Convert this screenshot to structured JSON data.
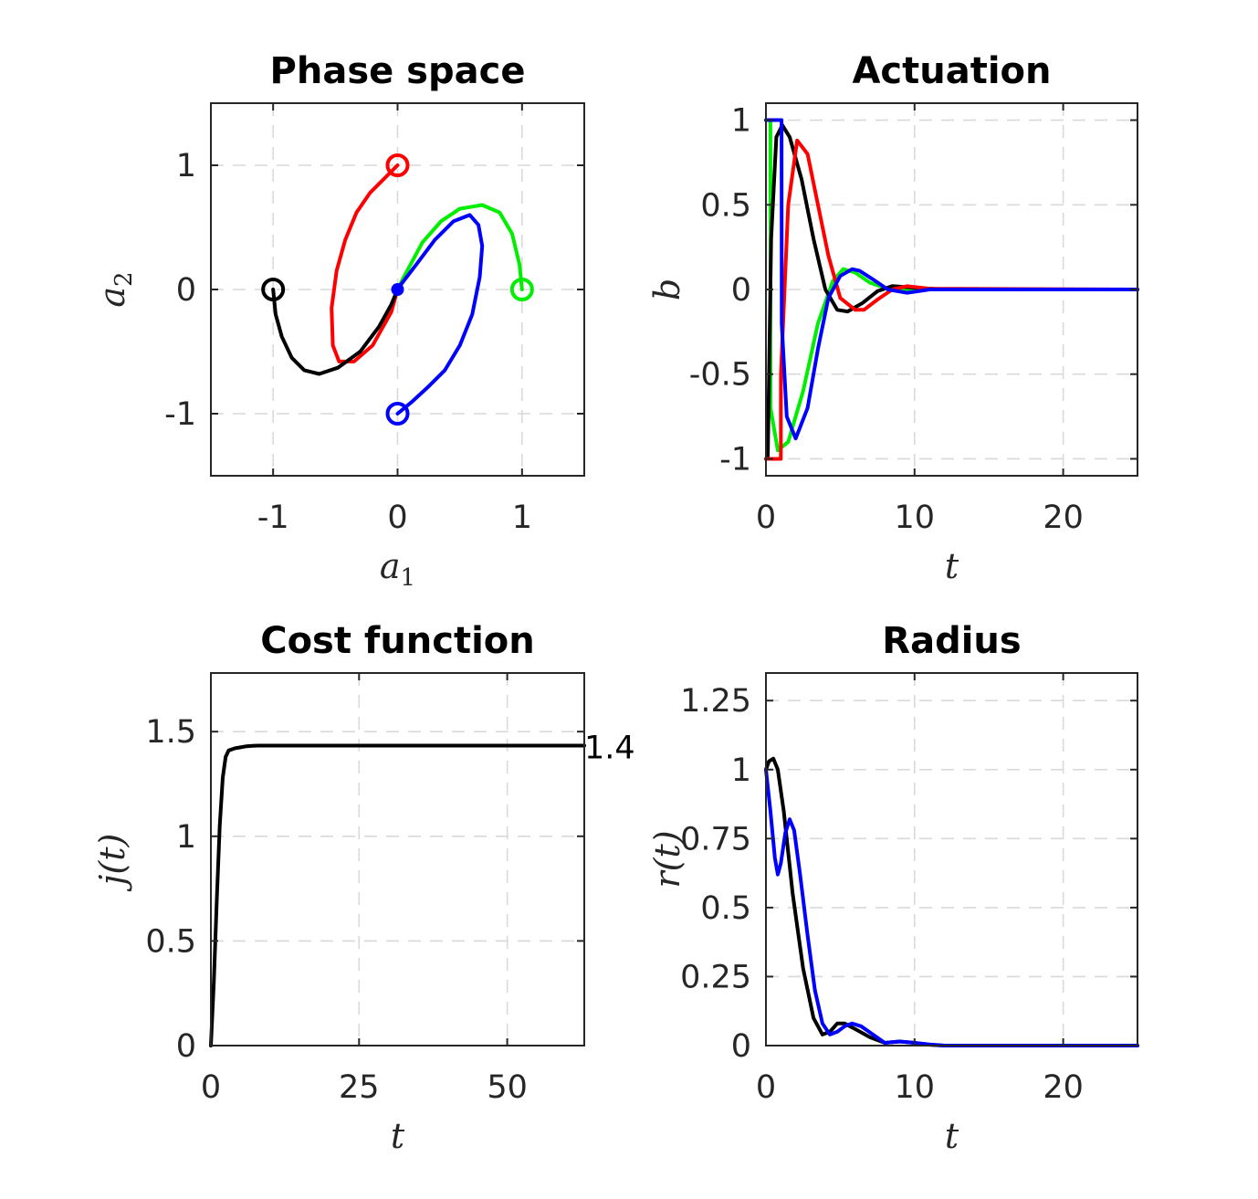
{
  "colors": {
    "red": "#ff0000",
    "green": "#00ee00",
    "blue": "#0000ff",
    "black": "#000000"
  },
  "chart_data": [
    {
      "id": "phase",
      "type": "line",
      "title": "Phase space",
      "xlabel": "a",
      "xlabel_sub": "1",
      "ylabel": "a",
      "ylabel_sub": "2",
      "xlim": [
        -1.5,
        1.5
      ],
      "ylim": [
        -1.5,
        1.5
      ],
      "xticks": [
        -1,
        0,
        1
      ],
      "xtick_labels": [
        "-1",
        "0",
        "1"
      ],
      "yticks": [
        -1,
        0,
        1
      ],
      "ytick_labels": [
        "-1",
        "0",
        "1"
      ],
      "grid": true,
      "series": [
        {
          "color": "red",
          "start_marker": true,
          "x": [
            0,
            -0.1,
            -0.22,
            -0.33,
            -0.42,
            -0.49,
            -0.53,
            -0.52,
            -0.47,
            -0.35,
            -0.2,
            -0.05,
            0
          ],
          "y": [
            1,
            0.9,
            0.78,
            0.62,
            0.4,
            0.15,
            -0.15,
            -0.45,
            -0.58,
            -0.58,
            -0.45,
            -0.18,
            0
          ]
        },
        {
          "color": "green",
          "start_marker": true,
          "x": [
            1,
            0.98,
            0.92,
            0.82,
            0.68,
            0.5,
            0.35,
            0.2,
            0.05,
            0
          ],
          "y": [
            0,
            0.2,
            0.45,
            0.62,
            0.68,
            0.65,
            0.55,
            0.38,
            0.1,
            0
          ]
        },
        {
          "color": "black",
          "start_marker": true,
          "x": [
            -1,
            -0.98,
            -0.93,
            -0.85,
            -0.75,
            -0.63,
            -0.48,
            -0.3,
            -0.15,
            -0.05,
            0
          ],
          "y": [
            0,
            -0.2,
            -0.38,
            -0.55,
            -0.65,
            -0.68,
            -0.63,
            -0.5,
            -0.3,
            -0.12,
            0
          ]
        },
        {
          "color": "blue",
          "start_marker": true,
          "x": [
            0,
            0.12,
            0.25,
            0.38,
            0.5,
            0.6,
            0.66,
            0.68,
            0.65,
            0.58,
            0.45,
            0.3,
            0.15,
            0.02,
            0
          ],
          "y": [
            -1,
            -0.9,
            -0.78,
            -0.65,
            -0.45,
            -0.2,
            0.1,
            0.35,
            0.52,
            0.6,
            0.55,
            0.4,
            0.2,
            0.03,
            0
          ]
        }
      ],
      "end_point": [
        0,
        0
      ]
    },
    {
      "id": "actuation",
      "type": "line",
      "title": "Actuation",
      "xlabel": "t",
      "ylabel": "b",
      "xlim": [
        0,
        25
      ],
      "ylim": [
        -1.1,
        1.1
      ],
      "xticks": [
        0,
        10,
        20
      ],
      "xtick_labels": [
        "0",
        "10",
        "20"
      ],
      "yticks": [
        -1,
        -0.5,
        0,
        0.5,
        1
      ],
      "ytick_labels": [
        "-1",
        "-0.5",
        "0",
        "0.5",
        "1"
      ],
      "grid": true,
      "series": [
        {
          "color": "green",
          "x": [
            0,
            0.3,
            0.31,
            0.8,
            1.5,
            2.5,
            3.5,
            4.5,
            5.2,
            6,
            7,
            8,
            9,
            10,
            12,
            25
          ],
          "y": [
            1,
            1,
            -0.7,
            -0.95,
            -0.9,
            -0.6,
            -0.2,
            0.05,
            0.12,
            0.1,
            0.04,
            0.01,
            -0.005,
            0,
            0,
            0
          ]
        },
        {
          "color": "black",
          "x": [
            0,
            0.12,
            0.35,
            0.7,
            1.1,
            1.6,
            2.4,
            3.2,
            4.0,
            4.8,
            5.5,
            6.5,
            7.5,
            8.5,
            10,
            12,
            25
          ],
          "y": [
            -1,
            -1,
            0.3,
            0.9,
            0.97,
            0.9,
            0.65,
            0.3,
            0.0,
            -0.12,
            -0.13,
            -0.08,
            -0.01,
            0.02,
            0.01,
            0,
            0
          ]
        },
        {
          "color": "red",
          "x": [
            0,
            1.0,
            1.01,
            1.5,
            2.1,
            2.8,
            3.5,
            4.2,
            5.0,
            6.0,
            6.6,
            7.5,
            8.5,
            9.5,
            11,
            25
          ],
          "y": [
            -1,
            -1,
            -0.5,
            0.5,
            0.88,
            0.8,
            0.5,
            0.2,
            -0.05,
            -0.12,
            -0.12,
            -0.06,
            0.0,
            0.02,
            0.005,
            0
          ]
        },
        {
          "color": "blue",
          "x": [
            0,
            1.05,
            1.06,
            1.4,
            2.0,
            2.8,
            3.5,
            4.2,
            5.0,
            5.8,
            6.3,
            7.2,
            8.2,
            9.5,
            11,
            25
          ],
          "y": [
            1,
            1,
            -0.2,
            -0.75,
            -0.88,
            -0.7,
            -0.35,
            -0.05,
            0.08,
            0.12,
            0.11,
            0.06,
            0.0,
            -0.02,
            0,
            0
          ]
        }
      ]
    },
    {
      "id": "cost",
      "type": "line",
      "title": "Cost function",
      "xlabel": "t",
      "ylabel": "j(t)",
      "xlim": [
        0,
        63
      ],
      "ylim": [
        0,
        1.78
      ],
      "xticks": [
        0,
        25,
        50
      ],
      "xtick_labels": [
        "0",
        "25",
        "50"
      ],
      "yticks": [
        0,
        0.5,
        1,
        1.5
      ],
      "ytick_labels": [
        "0",
        "0.5",
        "1",
        "1.5"
      ],
      "grid": true,
      "series": [
        {
          "color": "black",
          "x": [
            0,
            0.5,
            1,
            1.5,
            2,
            2.5,
            3,
            3.5,
            4,
            5,
            6,
            7,
            8,
            10,
            63
          ],
          "y": [
            0,
            0.3,
            0.7,
            1.05,
            1.28,
            1.38,
            1.41,
            1.415,
            1.42,
            1.425,
            1.43,
            1.432,
            1.433,
            1.433,
            1.433
          ]
        }
      ],
      "annotation": "1.4"
    },
    {
      "id": "radius",
      "type": "line",
      "title": "Radius",
      "xlabel": "t",
      "ylabel": "r(t)",
      "xlim": [
        0,
        25
      ],
      "ylim": [
        0,
        1.35
      ],
      "xticks": [
        0,
        10,
        20
      ],
      "xtick_labels": [
        "0",
        "10",
        "20"
      ],
      "yticks": [
        0,
        0.25,
        0.5,
        0.75,
        1,
        1.25
      ],
      "ytick_labels": [
        "0",
        "0.25",
        "0.5",
        "0.75",
        "1",
        "1.25"
      ],
      "grid": true,
      "series": [
        {
          "color": "black",
          "x": [
            0,
            0.2,
            0.5,
            0.8,
            1.2,
            1.8,
            2.5,
            3.2,
            3.8,
            4.3,
            4.8,
            5.3,
            6,
            7,
            8,
            9,
            10,
            11,
            12,
            25
          ],
          "y": [
            1,
            1.03,
            1.04,
            1.0,
            0.85,
            0.55,
            0.28,
            0.1,
            0.04,
            0.05,
            0.08,
            0.08,
            0.06,
            0.03,
            0.01,
            0.015,
            0.01,
            0.003,
            0,
            0
          ]
        },
        {
          "color": "blue",
          "x": [
            0,
            0.3,
            0.6,
            0.8,
            1.0,
            1.3,
            1.6,
            1.9,
            2.3,
            2.8,
            3.3,
            3.8,
            4.3,
            4.8,
            5.3,
            5.8,
            6.4,
            7.2,
            8,
            9,
            10,
            11,
            12,
            25
          ],
          "y": [
            1,
            0.85,
            0.68,
            0.62,
            0.66,
            0.77,
            0.82,
            0.78,
            0.62,
            0.4,
            0.2,
            0.08,
            0.04,
            0.05,
            0.07,
            0.08,
            0.07,
            0.04,
            0.01,
            0.015,
            0.01,
            0.004,
            0,
            0
          ]
        }
      ]
    }
  ]
}
